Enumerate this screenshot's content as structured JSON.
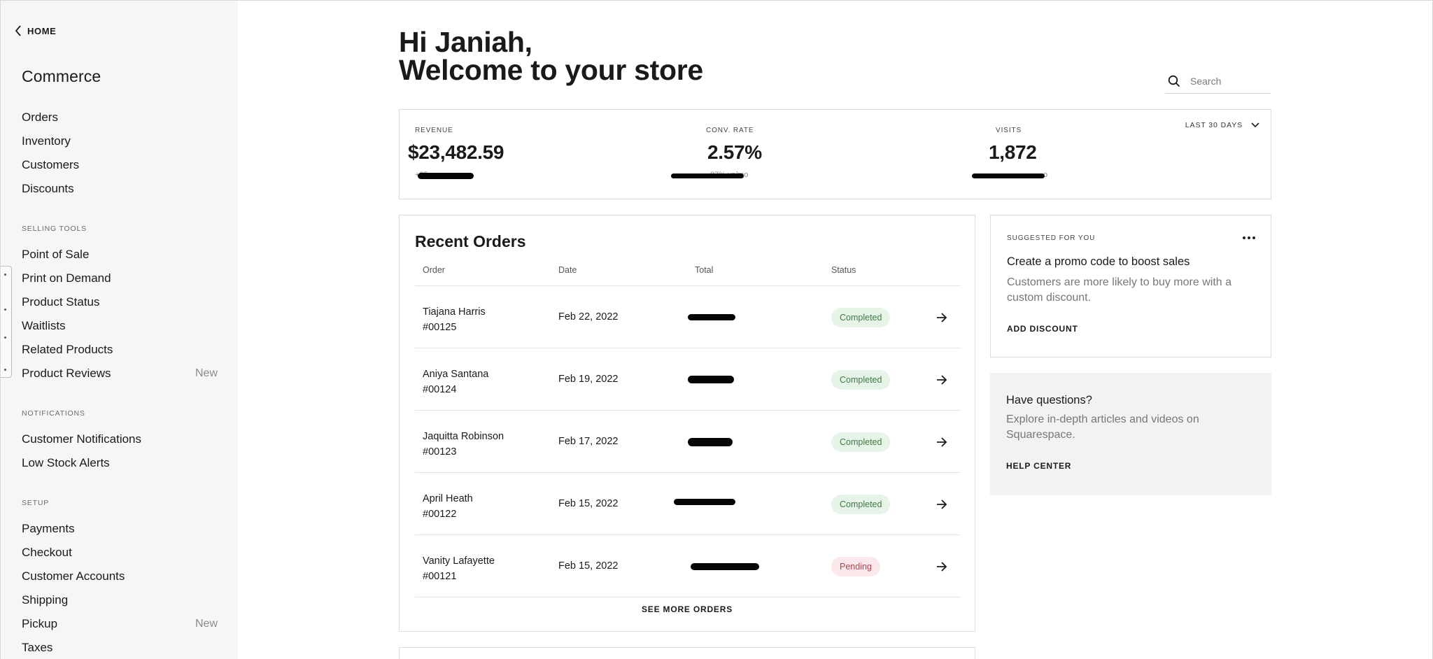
{
  "sidebar": {
    "home_label": "HOME",
    "title": "Commerce",
    "primary": [
      "Orders",
      "Inventory",
      "Customers",
      "Discounts"
    ],
    "selling_tools": {
      "heading": "SELLING TOOLS",
      "items": [
        {
          "label": "Point of Sale",
          "badge": ""
        },
        {
          "label": "Print on Demand",
          "badge": ""
        },
        {
          "label": "Product Status",
          "badge": ""
        },
        {
          "label": "Waitlists",
          "badge": ""
        },
        {
          "label": "Related Products",
          "badge": ""
        },
        {
          "label": "Product Reviews",
          "badge": "New"
        }
      ]
    },
    "notifications": {
      "heading": "NOTIFICATIONS",
      "items": [
        "Customer Notifications",
        "Low Stock Alerts"
      ]
    },
    "setup": {
      "heading": "SETUP",
      "items": [
        {
          "label": "Payments",
          "badge": ""
        },
        {
          "label": "Checkout",
          "badge": ""
        },
        {
          "label": "Customer Accounts",
          "badge": ""
        },
        {
          "label": "Shipping",
          "badge": ""
        },
        {
          "label": "Pickup",
          "badge": "New"
        },
        {
          "label": "Taxes",
          "badge": ""
        }
      ]
    }
  },
  "header": {
    "greeting_line1": "Hi Janiah,",
    "greeting_line2": "Welcome to your store",
    "search_placeholder": "Search"
  },
  "stats": {
    "range_label": "LAST 30 DAYS",
    "revenue": {
      "label": "REVENUE",
      "value": "$23,482.59",
      "sub": "+25"
    },
    "conversion": {
      "label": "CONV. RATE",
      "value": "2.57%",
      "sub": "87% vs/mo"
    },
    "visits": {
      "label": "VISITS",
      "value": "1,872",
      "sub": "o"
    }
  },
  "orders": {
    "title": "Recent Orders",
    "columns": {
      "order": "Order",
      "date": "Date",
      "total": "Total",
      "status": "Status"
    },
    "rows": [
      {
        "name": "Tiajana Harris",
        "number": "#00125",
        "date": "Feb 22, 2022",
        "status": "Completed"
      },
      {
        "name": "Aniya Santana",
        "number": "#00124",
        "date": "Feb 19, 2022",
        "status": "Completed"
      },
      {
        "name": "Jaquitta Robinson",
        "number": "#00123",
        "date": "Feb 17, 2022",
        "status": "Completed"
      },
      {
        "name": "April Heath",
        "number": "#00122",
        "date": "Feb 15, 2022",
        "status": "Completed"
      },
      {
        "name": "Vanity Lafayette",
        "number": "#00121",
        "date": "Feb 15, 2022",
        "status": "Pending"
      }
    ],
    "see_more": "SEE MORE ORDERS"
  },
  "suggested": {
    "eyebrow": "SUGGESTED FOR YOU",
    "title": "Create a promo code to boost sales",
    "body": "Customers are more likely to buy more with a custom discount.",
    "link": "ADD DISCOUNT"
  },
  "help": {
    "title": "Have questions?",
    "body": "Explore in-depth articles and videos on Squarespace.",
    "link": "HELP CENTER"
  },
  "colors": {
    "completed_bg": "#e7f4e8",
    "completed_text": "#3d7a45",
    "pending_bg": "#fbe8ea",
    "pending_text": "#b3424e",
    "sidebar_bg": "#f6f6f6"
  }
}
